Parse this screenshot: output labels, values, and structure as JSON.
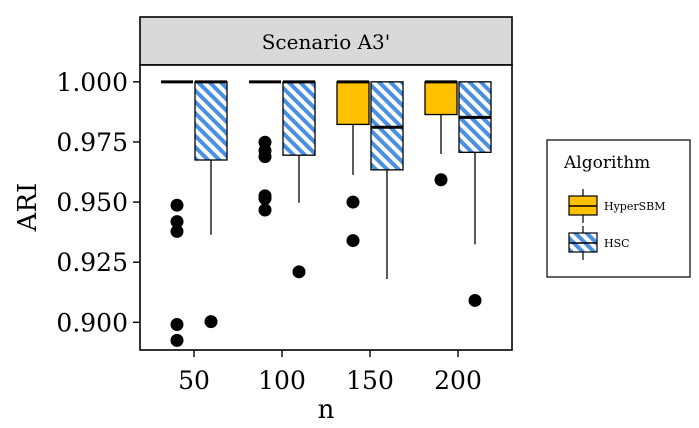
{
  "chart_data": {
    "type": "box",
    "facet_title": "Scenario A3'",
    "xlabel": "n",
    "ylabel": "ARI",
    "categories": [
      "50",
      "100",
      "150",
      "200"
    ],
    "ylim": [
      0.8885,
      1.007
    ],
    "y_ticks": [
      "1.000",
      "0.975",
      "0.950",
      "0.925",
      "0.900"
    ],
    "legend": {
      "title": "Algorithm",
      "position": "right",
      "entries": [
        "HyperSBM",
        "HSC"
      ]
    },
    "colors": {
      "HyperSBM": "#ffc000",
      "HSC": "#4a90e2",
      "panel_strip": "#d9d9d9"
    },
    "series": [
      {
        "name": "HyperSBM",
        "fill": "solid",
        "boxes": [
          {
            "category": "50",
            "q1": 1.0,
            "median": 1.0,
            "q3": 1.0,
            "whisker_low": 1.0,
            "whisker_high": 1.0,
            "outliers": [
              0.9487,
              0.9419,
              0.9378,
              0.8991,
              0.8925
            ]
          },
          {
            "category": "100",
            "q1": 1.0,
            "median": 1.0,
            "q3": 1.0,
            "whisker_low": 1.0,
            "whisker_high": 1.0,
            "outliers": [
              0.9749,
              0.9714,
              0.9689,
              0.9526,
              0.9515,
              0.9467
            ]
          },
          {
            "category": "150",
            "q1": 0.9823,
            "median": 1.0,
            "q3": 1.0,
            "whisker_low": 0.9613,
            "whisker_high": 1.0,
            "outliers": [
              0.95,
              0.934
            ]
          },
          {
            "category": "200",
            "q1": 0.9864,
            "median": 1.0,
            "q3": 1.0,
            "whisker_low": 0.97,
            "whisker_high": 1.0,
            "outliers": [
              0.9593
            ]
          }
        ]
      },
      {
        "name": "HSC",
        "fill": "hatched",
        "boxes": [
          {
            "category": "50",
            "q1": 0.9675,
            "median": 1.0,
            "q3": 1.0,
            "whisker_low": 0.9364,
            "whisker_high": 1.0,
            "outliers": [
              0.9003
            ]
          },
          {
            "category": "100",
            "q1": 0.9695,
            "median": 1.0,
            "q3": 1.0,
            "whisker_low": 0.9497,
            "whisker_high": 1.0,
            "outliers": [
              0.921
            ]
          },
          {
            "category": "150",
            "q1": 0.9634,
            "median": 0.9811,
            "q3": 1.0,
            "whisker_low": 0.918,
            "whisker_high": 1.0,
            "outliers": []
          },
          {
            "category": "200",
            "q1": 0.9707,
            "median": 0.9852,
            "q3": 1.0,
            "whisker_low": 0.9324,
            "whisker_high": 1.0,
            "outliers": [
              0.9091
            ]
          }
        ]
      }
    ]
  }
}
